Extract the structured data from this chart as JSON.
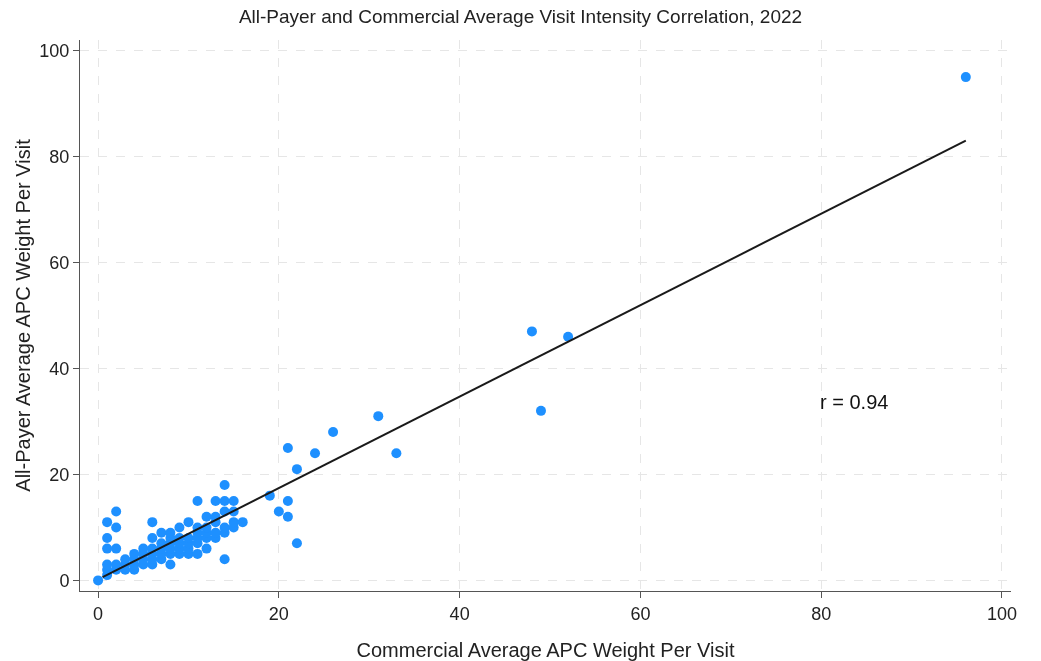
{
  "chart_data": {
    "type": "scatter",
    "title": "All-Payer and Commercial Average Visit Intensity Correlation, 2022",
    "xlabel": "Commercial Average APC Weight Per Visit",
    "ylabel": "All-Payer Average APC Weight Per Visit",
    "xlim": [
      -2,
      101
    ],
    "ylim": [
      -2,
      102
    ],
    "xticks": [
      0,
      20,
      40,
      60,
      80,
      100
    ],
    "yticks": [
      0,
      20,
      40,
      60,
      80,
      100
    ],
    "grid": true,
    "annotations": [
      "r = 0.94"
    ],
    "series": [
      {
        "marker": "circle",
        "color": "#1e90ff",
        "x": [
          0,
          1,
          1,
          1,
          1,
          1,
          1,
          2,
          2,
          2,
          2,
          2,
          3,
          3,
          3,
          4,
          4,
          4,
          4,
          5,
          5,
          5,
          5,
          6,
          6,
          6,
          6,
          6,
          6,
          7,
          7,
          7,
          7,
          7,
          8,
          8,
          8,
          8,
          8,
          8,
          9,
          9,
          9,
          9,
          9,
          10,
          10,
          10,
          10,
          10,
          11,
          11,
          11,
          11,
          11,
          12,
          12,
          12,
          12,
          12,
          13,
          13,
          13,
          13,
          14,
          14,
          14,
          14,
          14,
          15,
          15,
          15,
          15,
          16,
          11,
          13,
          14,
          19,
          20,
          21,
          21,
          21,
          22,
          22,
          24,
          26,
          31,
          33,
          48,
          49,
          52,
          96
        ],
        "values": [
          0,
          1,
          2,
          3,
          6,
          8,
          11,
          2,
          6,
          10,
          13,
          3,
          2,
          3,
          4,
          2,
          3,
          4,
          5,
          3,
          4,
          5,
          6,
          3,
          4,
          5,
          6,
          8,
          11,
          4,
          5,
          6,
          7,
          9,
          3,
          5,
          6,
          7,
          8,
          9,
          5,
          6,
          7,
          8,
          10,
          5,
          6,
          7,
          8,
          11,
          5,
          7,
          8,
          9,
          10,
          6,
          8,
          9,
          10,
          12,
          8,
          9,
          11,
          12,
          4,
          9,
          10,
          13,
          18,
          10,
          11,
          13,
          15,
          11,
          15,
          15,
          15,
          16,
          13,
          25,
          15,
          12,
          21,
          7,
          24,
          28,
          31,
          24,
          47,
          32,
          46,
          95
        ]
      },
      {
        "type": "line",
        "marker": "none",
        "line_style": "solid",
        "color": "#1a1a1a",
        "x": [
          0.5,
          96
        ],
        "values": [
          0.6,
          83
        ]
      }
    ]
  }
}
